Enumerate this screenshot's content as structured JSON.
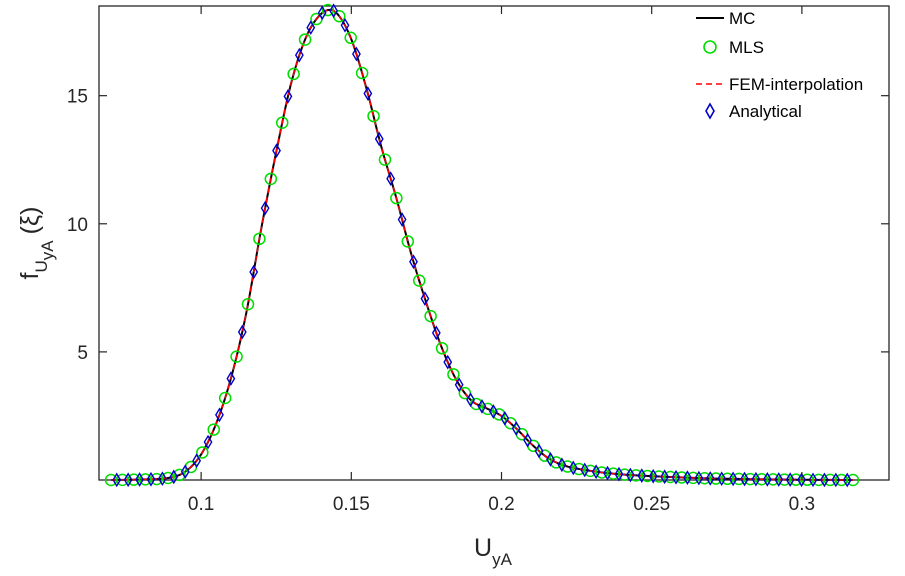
{
  "chart_data": {
    "type": "line",
    "title": "",
    "xlabel": {
      "main": "U",
      "sub": "yA"
    },
    "ylabel": {
      "main": "f",
      "sub1": "U",
      "sub2": "yA",
      "arg": "(ξ)"
    },
    "xlim": [
      0.066,
      0.329
    ],
    "ylim": [
      0,
      18.5
    ],
    "xticks": [
      0.1,
      0.15,
      0.2,
      0.25,
      0.3
    ],
    "xtick_labels": [
      "0.1",
      "0.15",
      "0.2",
      "0.25",
      "0.3"
    ],
    "yticks": [
      5,
      10,
      15
    ],
    "ytick_labels": [
      "5",
      "10",
      "15"
    ],
    "grid": false,
    "legend_position": "top-right",
    "series": [
      {
        "name": "MC",
        "style": "line",
        "color": "#000000",
        "dash": "solid"
      },
      {
        "name": "MLS",
        "style": "markers",
        "marker": "circle",
        "color": "#00dd00"
      },
      {
        "name": "FEM-interpolation",
        "style": "line",
        "color": "#ff0000",
        "dash": "dashed"
      },
      {
        "name": "Analytical",
        "style": "markers",
        "marker": "diamond",
        "color": "#0000cc"
      }
    ],
    "x": [
      0.07,
      0.08,
      0.09,
      0.095,
      0.1,
      0.105,
      0.11,
      0.115,
      0.12,
      0.125,
      0.13,
      0.135,
      0.14,
      0.143,
      0.146,
      0.15,
      0.155,
      0.16,
      0.165,
      0.17,
      0.175,
      0.18,
      0.185,
      0.19,
      0.195,
      0.2,
      0.205,
      0.21,
      0.215,
      0.22,
      0.23,
      0.24,
      0.25,
      0.26,
      0.27,
      0.28,
      0.3,
      0.317
    ],
    "y": [
      0.0,
      0.02,
      0.1,
      0.35,
      1.0,
      2.2,
      4.0,
      6.5,
      9.8,
      12.8,
      15.5,
      17.3,
      18.2,
      18.35,
      18.1,
      17.2,
      15.3,
      13.0,
      11.0,
      8.8,
      6.9,
      5.2,
      3.9,
      3.1,
      2.8,
      2.5,
      2.0,
      1.4,
      0.9,
      0.6,
      0.35,
      0.22,
      0.15,
      0.1,
      0.06,
      0.04,
      0.01,
      0.0
    ]
  }
}
